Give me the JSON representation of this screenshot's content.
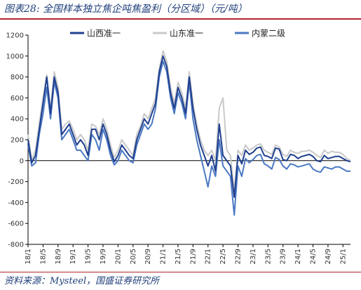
{
  "header": {
    "title": "图表28:  全国样本独立焦企吨焦盈利（分区域）（元/吨）"
  },
  "footer": {
    "source": "资料来源：Mysteel，国盛证券研究所"
  },
  "colors": {
    "shanxi": "#1f3f8f",
    "shandong": "#c9c9c9",
    "neimeng": "#4a78c2",
    "axis": "#000000",
    "accent": "#b1262c",
    "title": "#1f3f7a"
  },
  "chart_data": {
    "type": "line",
    "title": "全国样本独立焦企吨焦盈利（分区域）（元/吨）",
    "xlabel": "",
    "ylabel": "",
    "ylim": [
      -800,
      1200
    ],
    "yticks": [
      -800,
      -600,
      -400,
      -200,
      0,
      200,
      400,
      600,
      800,
      1000,
      1200
    ],
    "xlim": [
      "2018-01",
      "2025-03"
    ],
    "xticks": [
      "18/1",
      "18/5",
      "18/9",
      "19/1",
      "19/5",
      "19/9",
      "20/1",
      "20/5",
      "20/9",
      "21/1",
      "21/5",
      "21/9",
      "22/1",
      "22/5",
      "22/9",
      "23/1",
      "23/5",
      "23/9",
      "24/1",
      "24/5",
      "24/9",
      "25/1"
    ],
    "grid": false,
    "legend": "top-center",
    "x": [
      "2018-01",
      "2018-02",
      "2018-03",
      "2018-04",
      "2018-05",
      "2018-06",
      "2018-07",
      "2018-08",
      "2018-09",
      "2018-10",
      "2018-11",
      "2018-12",
      "2019-01",
      "2019-02",
      "2019-03",
      "2019-04",
      "2019-05",
      "2019-06",
      "2019-07",
      "2019-08",
      "2019-09",
      "2019-10",
      "2019-11",
      "2019-12",
      "2020-01",
      "2020-02",
      "2020-03",
      "2020-04",
      "2020-05",
      "2020-06",
      "2020-07",
      "2020-08",
      "2020-09",
      "2020-10",
      "2020-11",
      "2020-12",
      "2021-01",
      "2021-02",
      "2021-03",
      "2021-04",
      "2021-05",
      "2021-06",
      "2021-07",
      "2021-08",
      "2021-09",
      "2021-10",
      "2021-11",
      "2021-12",
      "2022-01",
      "2022-02",
      "2022-03",
      "2022-04",
      "2022-05",
      "2022-06",
      "2022-07",
      "2022-08",
      "2022-09",
      "2022-10",
      "2022-11",
      "2022-12",
      "2023-01",
      "2023-02",
      "2023-03",
      "2023-04",
      "2023-05",
      "2023-06",
      "2023-07",
      "2023-08",
      "2023-09",
      "2023-10",
      "2023-11",
      "2023-12",
      "2024-01",
      "2024-02",
      "2024-03",
      "2024-04",
      "2024-05",
      "2024-06",
      "2024-07",
      "2024-08",
      "2024-09",
      "2024-10",
      "2024-11",
      "2024-12",
      "2025-01",
      "2025-02",
      "2025-03"
    ],
    "series": [
      {
        "name": "山西准一",
        "color": "#1f3f8f",
        "width": 2,
        "values": [
          200,
          -20,
          50,
          300,
          550,
          800,
          450,
          800,
          650,
          250,
          300,
          350,
          250,
          150,
          200,
          150,
          50,
          300,
          300,
          200,
          350,
          250,
          100,
          -10,
          50,
          150,
          100,
          50,
          20,
          200,
          300,
          400,
          350,
          450,
          550,
          850,
          1000,
          900,
          650,
          500,
          700,
          600,
          450,
          800,
          500,
          300,
          150,
          50,
          -50,
          50,
          -100,
          350,
          50,
          0,
          -50,
          -350,
          50,
          -30,
          100,
          60,
          80,
          120,
          130,
          50,
          40,
          20,
          120,
          110,
          10,
          0,
          60,
          50,
          20,
          40,
          50,
          60,
          40,
          0,
          -10,
          50,
          20,
          30,
          40,
          40,
          20,
          0,
          -10
        ]
      },
      {
        "name": "山东准一",
        "color": "#c9c9c9",
        "width": 2,
        "values": [
          250,
          0,
          100,
          350,
          600,
          820,
          500,
          850,
          700,
          300,
          350,
          380,
          300,
          200,
          250,
          200,
          100,
          350,
          330,
          250,
          400,
          300,
          150,
          30,
          100,
          200,
          150,
          100,
          50,
          250,
          330,
          450,
          400,
          500,
          600,
          880,
          1050,
          950,
          700,
          550,
          750,
          650,
          500,
          850,
          550,
          350,
          200,
          100,
          50,
          100,
          0,
          500,
          600,
          100,
          50,
          -300,
          100,
          50,
          150,
          100,
          120,
          150,
          160,
          100,
          80,
          60,
          150,
          130,
          60,
          40,
          100,
          80,
          70,
          90,
          90,
          100,
          80,
          50,
          30,
          100,
          70,
          90,
          80,
          80,
          60,
          20,
          0
        ]
      },
      {
        "name": "内蒙二级",
        "color": "#4a78c2",
        "width": 2,
        "values": [
          150,
          -50,
          -20,
          250,
          450,
          700,
          400,
          750,
          600,
          200,
          250,
          300,
          200,
          100,
          100,
          50,
          0,
          250,
          200,
          100,
          300,
          200,
          50,
          -40,
          0,
          100,
          50,
          0,
          -20,
          150,
          250,
          350,
          300,
          350,
          500,
          800,
          950,
          850,
          600,
          450,
          650,
          550,
          400,
          750,
          400,
          200,
          50,
          -100,
          -250,
          -50,
          -150,
          200,
          -50,
          -100,
          -150,
          -520,
          -50,
          -150,
          20,
          -20,
          10,
          50,
          60,
          -30,
          -50,
          -80,
          30,
          10,
          -50,
          -80,
          -30,
          -40,
          -60,
          -50,
          -40,
          -30,
          -80,
          -100,
          -110,
          -60,
          -70,
          -80,
          -60,
          -60,
          -80,
          -100,
          -100
        ]
      }
    ]
  }
}
